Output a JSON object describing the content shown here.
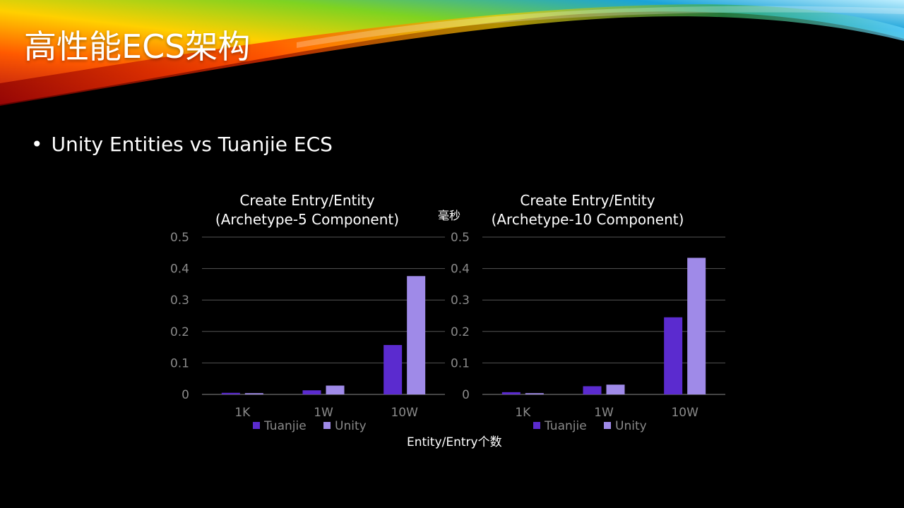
{
  "slide": {
    "title": "高性能ECS架构",
    "bullet": "Unity Entities vs Tuanjie ECS",
    "unit_label": "毫秒",
    "x_axis_label": "Entity/Entry个数"
  },
  "colors": {
    "tuanjie": "#5b2bcf",
    "unity": "#9f8ae8",
    "grid": "#555555",
    "tick": "#8a8a8a"
  },
  "chart_data": [
    {
      "type": "bar",
      "title_line1": "Create Entry/Entity",
      "title_line2": "(Archetype-5 Component)",
      "categories": [
        "1K",
        "1W",
        "10W"
      ],
      "series": [
        {
          "name": "Tuanjie",
          "values": [
            0.005,
            0.013,
            0.157
          ]
        },
        {
          "name": "Unity",
          "values": [
            0.004,
            0.028,
            0.376
          ]
        }
      ],
      "ylim": [
        0,
        0.5
      ],
      "yticks": [
        "0",
        "0.1",
        "0.2",
        "0.3",
        "0.4",
        "0.5"
      ],
      "grid": true,
      "legend": "bottom"
    },
    {
      "type": "bar",
      "title_line1": "Create Entry/Entity",
      "title_line2": "(Archetype-10 Component)",
      "categories": [
        "1K",
        "1W",
        "10W"
      ],
      "series": [
        {
          "name": "Tuanjie",
          "values": [
            0.007,
            0.026,
            0.245
          ]
        },
        {
          "name": "Unity",
          "values": [
            0.004,
            0.031,
            0.434
          ]
        }
      ],
      "ylim": [
        0,
        0.5
      ],
      "yticks": [
        "0",
        "0.1",
        "0.2",
        "0.3",
        "0.4",
        "0.5"
      ],
      "grid": true,
      "legend": "bottom"
    }
  ]
}
